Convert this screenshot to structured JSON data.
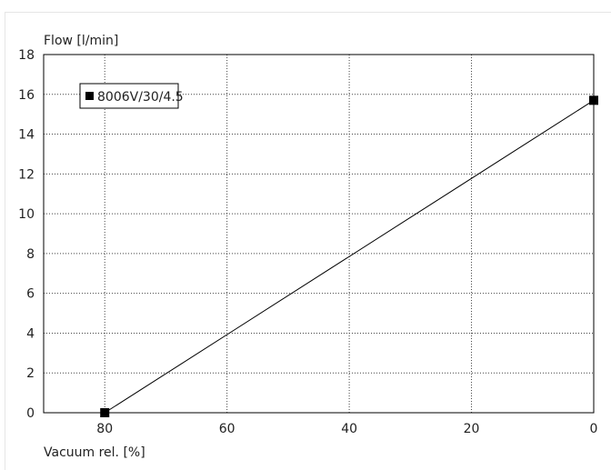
{
  "chart_data": {
    "type": "line",
    "title": "",
    "xlabel": "Vacuum rel. [%]",
    "ylabel": "Flow [l/min]",
    "xlim": [
      90,
      0
    ],
    "ylim": [
      0,
      18
    ],
    "x_reversed": true,
    "x_ticks": [
      80,
      60,
      40,
      20,
      0
    ],
    "y_ticks": [
      0,
      2,
      4,
      6,
      8,
      10,
      12,
      14,
      16,
      18
    ],
    "grid": true,
    "grid_style": "dotted",
    "legend_position": "top-left",
    "series": [
      {
        "name": "8006V/30/4.5",
        "color": "#000000",
        "marker": "square",
        "x": [
          80,
          0
        ],
        "y": [
          0,
          15.7
        ]
      }
    ]
  }
}
